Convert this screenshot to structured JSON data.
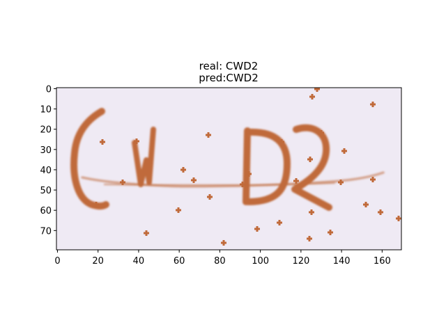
{
  "figure": {
    "title_line1": "real: CWD2",
    "title_line2": "pred:CWD2"
  },
  "image": {
    "description_text": "CWD2",
    "background_color": "#efeaf4",
    "ink_color": "#c06a3a"
  },
  "axes": {
    "x_ticks": [
      {
        "value": 0,
        "label": "0"
      },
      {
        "value": 20,
        "label": "20"
      },
      {
        "value": 40,
        "label": "40"
      },
      {
        "value": 60,
        "label": "60"
      },
      {
        "value": 80,
        "label": "80"
      },
      {
        "value": 100,
        "label": "100"
      },
      {
        "value": 120,
        "label": "120"
      },
      {
        "value": 140,
        "label": "140"
      },
      {
        "value": 160,
        "label": "160"
      }
    ],
    "y_ticks": [
      {
        "value": 0,
        "label": "0"
      },
      {
        "value": 10,
        "label": "10"
      },
      {
        "value": 20,
        "label": "20"
      },
      {
        "value": 30,
        "label": "30"
      },
      {
        "value": 40,
        "label": "40"
      },
      {
        "value": 50,
        "label": "50"
      },
      {
        "value": 60,
        "label": "60"
      },
      {
        "value": 70,
        "label": "70"
      }
    ],
    "x_range": [
      -0.5,
      169.5
    ],
    "y_range": [
      79.5,
      -0.5
    ],
    "y_inverted": true
  }
}
